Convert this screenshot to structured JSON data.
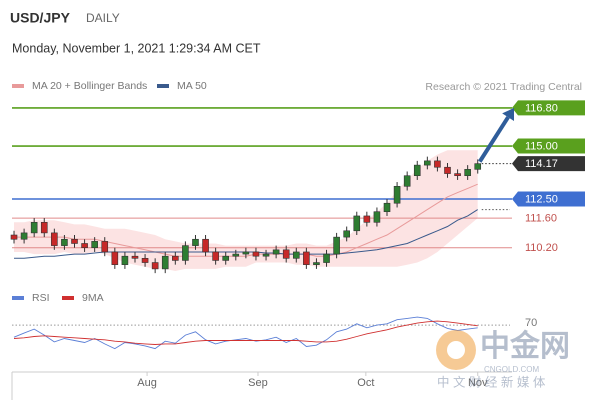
{
  "header": {
    "symbol": "USD/JPY",
    "period": "DAILY",
    "date": "Monday, November 1, 2021 1:29:34 AM CET"
  },
  "watermark": {
    "name": "中金网",
    "site": "CNGOLD.COM",
    "tagline": "中 文 财 经 新 媒 体"
  },
  "chart_data": [
    {
      "type": "candlestick",
      "attribution": "Research © 2021 Trading Central",
      "xlim": [
        -0.2,
        49.2
      ],
      "ylim": [
        108.44,
        117.41
      ],
      "up_color": "#2e7d32",
      "down_color": "#c62828",
      "open": [
        110.8,
        110.6,
        110.9,
        111.4,
        110.9,
        110.3,
        110.6,
        110.4,
        110.2,
        110.5,
        110.0,
        109.4,
        109.8,
        109.7,
        109.5,
        109.2,
        109.8,
        109.6,
        110.3,
        110.6,
        110.0,
        109.6,
        109.8,
        109.9,
        110.0,
        109.8,
        109.9,
        110.1,
        109.7,
        110.0,
        109.4,
        109.5,
        109.9,
        110.7,
        111.0,
        111.7,
        111.4,
        111.9,
        112.3,
        113.1,
        113.6,
        114.1,
        114.3,
        114.0,
        113.7,
        113.6,
        113.9
      ],
      "high": [
        111.0,
        111.1,
        111.6,
        111.6,
        111.1,
        110.8,
        110.8,
        110.6,
        110.7,
        110.7,
        110.2,
        110.0,
        110.0,
        109.9,
        109.7,
        110.0,
        110.0,
        110.5,
        110.8,
        110.8,
        110.2,
        110.0,
        110.1,
        110.2,
        110.2,
        110.1,
        110.3,
        110.3,
        110.2,
        110.2,
        109.7,
        110.1,
        110.9,
        111.2,
        111.9,
        111.9,
        112.1,
        112.5,
        113.3,
        113.8,
        114.3,
        114.5,
        114.5,
        114.2,
        113.9,
        114.1,
        114.37
      ],
      "low": [
        110.4,
        110.4,
        110.7,
        110.7,
        110.1,
        110.1,
        110.2,
        110.0,
        110.0,
        109.8,
        109.2,
        109.2,
        109.5,
        109.3,
        109.0,
        109.0,
        109.4,
        109.4,
        110.1,
        109.8,
        109.4,
        109.4,
        109.6,
        109.7,
        109.6,
        109.6,
        109.7,
        109.5,
        109.5,
        109.2,
        109.2,
        109.3,
        109.7,
        110.5,
        110.8,
        111.2,
        111.2,
        111.7,
        112.1,
        112.9,
        113.4,
        113.9,
        113.8,
        113.5,
        113.4,
        113.4,
        113.7
      ],
      "close": [
        110.6,
        110.9,
        111.4,
        110.9,
        110.3,
        110.6,
        110.4,
        110.2,
        110.5,
        110.0,
        109.4,
        109.8,
        109.7,
        109.5,
        109.2,
        109.8,
        109.6,
        110.3,
        110.6,
        110.0,
        109.6,
        109.8,
        109.9,
        110.0,
        109.8,
        109.9,
        110.1,
        109.7,
        110.0,
        109.4,
        109.5,
        109.9,
        110.7,
        111.0,
        111.7,
        111.4,
        111.9,
        112.3,
        113.1,
        113.6,
        114.1,
        114.3,
        114.0,
        113.7,
        113.6,
        113.9,
        114.17
      ],
      "series": [
        {
          "name": "MA 20 + Bollinger Bands",
          "color": "#e89a9a",
          "band_color": "#fbdede",
          "values": [
            110.7,
            110.7,
            110.7,
            110.7,
            110.7,
            110.7,
            110.6,
            110.6,
            110.6,
            110.5,
            110.4,
            110.3,
            110.2,
            110.1,
            110.0,
            109.9,
            109.8,
            109.8,
            109.8,
            109.8,
            109.8,
            109.8,
            109.8,
            109.8,
            109.9,
            109.9,
            109.9,
            109.9,
            109.9,
            109.9,
            109.8,
            109.8,
            109.9,
            110.0,
            110.2,
            110.4,
            110.6,
            110.8,
            111.1,
            111.4,
            111.7,
            112.0,
            112.3,
            112.6,
            112.8,
            113.0,
            113.2
          ],
          "upper": [
            111.4,
            111.4,
            111.5,
            111.5,
            111.5,
            111.4,
            111.3,
            111.3,
            111.2,
            111.1,
            111.1,
            111.1,
            111.0,
            110.9,
            110.8,
            110.6,
            110.5,
            110.4,
            110.4,
            110.4,
            110.4,
            110.3,
            110.3,
            110.3,
            110.3,
            110.3,
            110.3,
            110.3,
            110.4,
            110.4,
            110.3,
            110.3,
            110.5,
            110.7,
            111.1,
            111.5,
            111.9,
            112.3,
            112.9,
            113.4,
            113.9,
            114.3,
            114.6,
            114.8,
            114.8,
            114.8,
            114.8
          ],
          "lower": [
            110.0,
            110.0,
            109.9,
            109.9,
            109.9,
            110.0,
            109.9,
            109.9,
            110.0,
            109.9,
            109.7,
            109.5,
            109.4,
            109.3,
            109.2,
            109.2,
            109.1,
            109.2,
            109.2,
            109.2,
            109.2,
            109.3,
            109.3,
            109.3,
            109.5,
            109.5,
            109.5,
            109.5,
            109.4,
            109.4,
            109.3,
            109.3,
            109.3,
            109.3,
            109.3,
            109.3,
            109.3,
            109.3,
            109.3,
            109.4,
            109.5,
            109.7,
            110.0,
            110.4,
            110.8,
            111.2,
            111.6
          ]
        },
        {
          "name": "MA 50",
          "color": "#3a5a8c",
          "values": [
            109.7,
            109.7,
            109.75,
            109.8,
            109.8,
            109.85,
            109.9,
            109.9,
            109.95,
            110.0,
            110.0,
            110.0,
            110.0,
            110.0,
            110.0,
            110.0,
            110.0,
            110.0,
            110.0,
            110.0,
            110.0,
            110.0,
            110.0,
            110.0,
            110.0,
            109.95,
            109.95,
            109.9,
            109.9,
            109.9,
            109.9,
            109.9,
            109.9,
            109.95,
            110.0,
            110.05,
            110.1,
            110.2,
            110.3,
            110.4,
            110.6,
            110.8,
            111.0,
            111.2,
            111.5,
            111.7,
            112.0
          ]
        }
      ],
      "levels": [
        {
          "value": 116.8,
          "label": "116.80",
          "color": "#5aa01e",
          "filled": true
        },
        {
          "value": 115.0,
          "label": "115.00",
          "color": "#5aa01e",
          "filled": true
        },
        {
          "value": 114.17,
          "color": "#333333",
          "filled": true
        },
        {
          "value": 112.5,
          "label": "112.50",
          "color": "#3f6fd1",
          "filled": true
        },
        {
          "value": 111.6,
          "label": "111.60",
          "color": "#e08a8a",
          "filled": false
        },
        {
          "value": 110.2,
          "label": "110.20",
          "color": "#e08a8a",
          "filled": false
        }
      ]
    },
    {
      "type": "line",
      "xlim": [
        -0.2,
        49.2
      ],
      "ylim": [
        0,
        100
      ],
      "yticks": [
        70
      ],
      "xticks": [
        {
          "value": 13.2,
          "label": "Aug"
        },
        {
          "value": 24.2,
          "label": "Sep"
        },
        {
          "value": 34.9,
          "label": "Oct"
        },
        {
          "value": 46,
          "label": "Nov"
        }
      ],
      "series": [
        {
          "name": "RSI",
          "color": "#5b7fd6",
          "values": [
            52,
            58,
            64,
            55,
            45,
            50,
            47,
            44,
            50,
            42,
            35,
            44,
            42,
            39,
            35,
            46,
            43,
            55,
            60,
            48,
            42,
            46,
            48,
            50,
            46,
            48,
            52,
            44,
            50,
            38,
            40,
            48,
            60,
            64,
            72,
            66,
            70,
            72,
            78,
            80,
            82,
            80,
            72,
            65,
            62,
            64,
            66
          ]
        },
        {
          "name": "9MA",
          "color": "#d03030",
          "values": [
            50,
            51,
            53,
            54,
            53,
            52,
            51,
            50,
            49,
            48,
            46,
            45,
            43,
            42,
            41,
            42,
            42,
            44,
            46,
            47,
            47,
            47,
            47,
            47,
            47,
            47,
            47,
            47,
            47,
            46,
            45,
            45,
            46,
            49,
            53,
            57,
            60,
            63,
            67,
            70,
            73,
            75,
            76,
            75,
            73,
            71,
            69
          ]
        }
      ]
    }
  ]
}
